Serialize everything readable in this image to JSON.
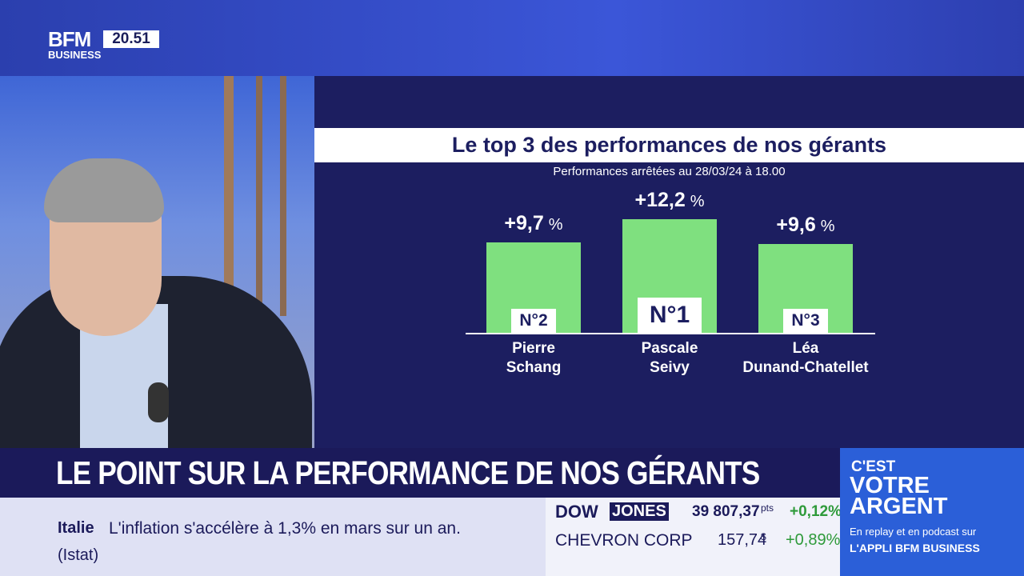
{
  "logo": {
    "brand": "BFM",
    "sub": "BUSINESS",
    "time": "20.51"
  },
  "chart_data": {
    "type": "bar",
    "title": "Le top 3 des performances de nos gérants",
    "subtitle": "Performances arrêtées au 28/03/24 à 18.00",
    "categories": [
      [
        "Pierre",
        "Schang"
      ],
      [
        "Pascale",
        "Seivy"
      ],
      [
        "Léa",
        "Dunand-Chatellet"
      ]
    ],
    "values": [
      9.7,
      12.2,
      9.6
    ],
    "value_labels": [
      "+9,7",
      "+12,2",
      "+9,6"
    ],
    "unit": "%",
    "ranks": [
      "N°2",
      "N°1",
      "N°3"
    ],
    "color": "#7fe07f"
  },
  "banner": {
    "headline": "LE POINT SUR LA PERFORMANCE DE NOS GÉRANTS"
  },
  "ticker": {
    "country": "Italie",
    "text": "L'inflation s'accélère à 1,3% en mars sur un an.",
    "source": "(Istat)"
  },
  "markets": [
    {
      "name": [
        "DOW",
        "JONES"
      ],
      "value": "39 807,37",
      "unit": "pts",
      "change": "+0,12%"
    },
    {
      "name": [
        "CHEVRON CORP"
      ],
      "value": "157,74",
      "unit": "$",
      "change": "+0,89%"
    }
  ],
  "promo": {
    "lines": [
      "C'EST",
      "VOTRE",
      "ARGENT"
    ],
    "note": "En replay et en podcast sur",
    "app": "L'APPLI BFM BUSINESS"
  }
}
